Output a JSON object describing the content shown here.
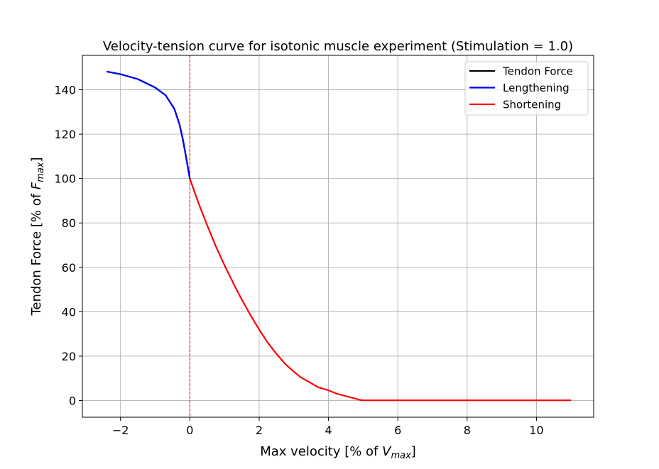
{
  "chart_data": {
    "type": "line",
    "title": "Velocity-tension curve for isotonic muscle experiment (Stimulation = 1.0)",
    "xlabel": {
      "prefix": "Max velocity [% of ",
      "sym": "V",
      "sub": "max",
      "suffix": "]"
    },
    "ylabel": {
      "prefix": "Tendon Force [% of ",
      "sym": "F",
      "sub": "max",
      "suffix": "]"
    },
    "xlim": [
      -3.1,
      11.65
    ],
    "ylim": [
      -7.5,
      155.5
    ],
    "xticks": [
      -2,
      0,
      2,
      4,
      6,
      8,
      10
    ],
    "xtick_labels": [
      "−2",
      "0",
      "2",
      "4",
      "6",
      "8",
      "10"
    ],
    "yticks": [
      0,
      20,
      40,
      60,
      80,
      100,
      120,
      140
    ],
    "ytick_labels": [
      "0",
      "20",
      "40",
      "60",
      "80",
      "100",
      "120",
      "140"
    ],
    "grid": true,
    "legend_position": "top-right",
    "vline": {
      "x": 0,
      "color": "#ff0000",
      "style": "dashed"
    },
    "series": [
      {
        "name": "Tendon Force",
        "color": "#000000",
        "x": [
          -2.4,
          -2.0,
          -1.5,
          -1.0,
          -0.7,
          -0.45,
          -0.3,
          -0.2,
          -0.1,
          0
        ],
        "y": [
          148.2,
          147.0,
          144.8,
          141.0,
          137.5,
          131.5,
          124.5,
          117.5,
          109.0,
          100.0
        ]
      },
      {
        "name": "Lengthening",
        "color": "#0000ff",
        "x": [
          -2.4,
          -2.0,
          -1.5,
          -1.0,
          -0.7,
          -0.45,
          -0.3,
          -0.2,
          -0.1,
          0
        ],
        "y": [
          148.2,
          147.0,
          144.8,
          141.0,
          137.5,
          131.5,
          124.5,
          117.5,
          109.0,
          100.0
        ]
      },
      {
        "name": "Shortening",
        "color": "#ff0000",
        "x": [
          0,
          0.25,
          0.5,
          0.75,
          1.0,
          1.25,
          1.5,
          1.75,
          2.0,
          2.25,
          2.5,
          2.75,
          3.0,
          3.2,
          3.5,
          3.7,
          4.0,
          4.25,
          4.5,
          4.75,
          4.95,
          6.0,
          8.0,
          10.0,
          11.0
        ],
        "y": [
          100.0,
          89.0,
          79.0,
          69.5,
          61.0,
          53.0,
          45.5,
          38.5,
          32.0,
          26.0,
          21.0,
          16.5,
          13.0,
          10.5,
          7.8,
          6.0,
          4.6,
          3.0,
          2.0,
          1.0,
          0.1,
          0.1,
          0.1,
          0.1,
          0.1
        ]
      }
    ]
  }
}
